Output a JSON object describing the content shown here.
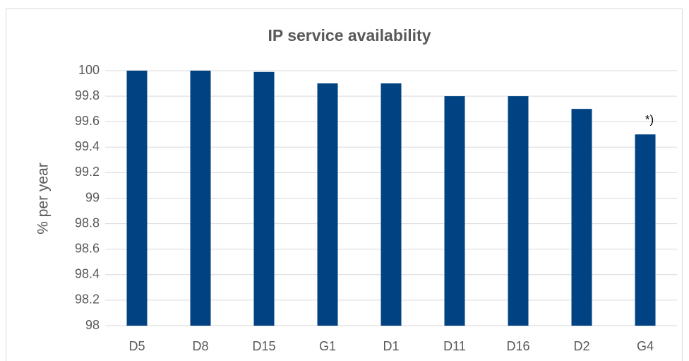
{
  "chart_data": {
    "type": "bar",
    "title": "IP service availability",
    "y_label": "% per year",
    "categories": [
      "D5",
      "D8",
      "D15",
      "G1",
      "D1",
      "D11",
      "D16",
      "D2",
      "G4"
    ],
    "values": [
      100,
      100,
      99.99,
      99.9,
      99.9,
      99.8,
      99.8,
      99.7,
      99.5
    ],
    "color": "#004282",
    "ylim": [
      98,
      100
    ],
    "yticks": [
      98,
      98.2,
      98.4,
      98.6,
      98.8,
      99,
      99.2,
      99.4,
      99.6,
      99.8,
      100
    ],
    "grid": true,
    "annotation": "*)"
  }
}
